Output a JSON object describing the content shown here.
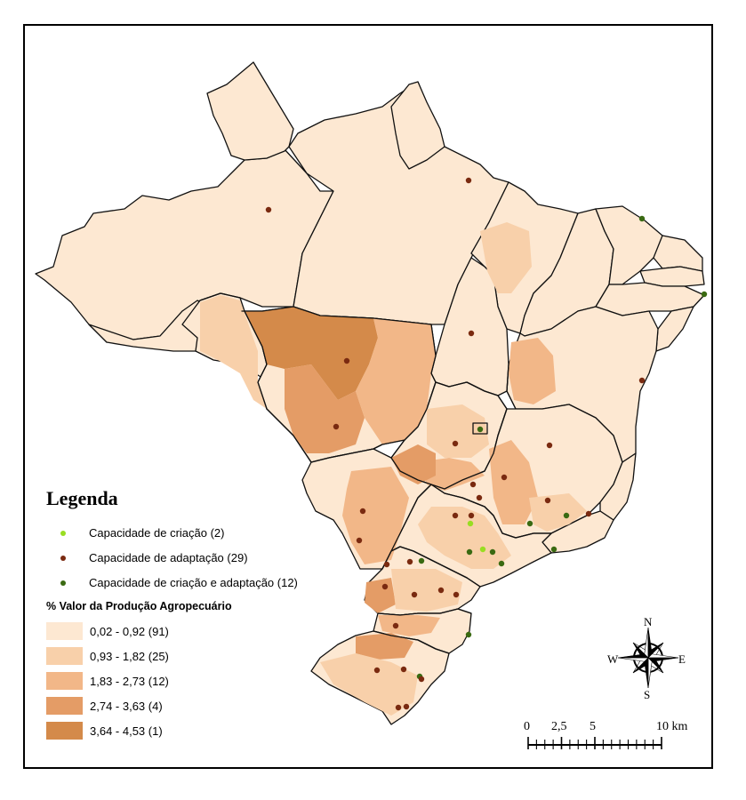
{
  "legend": {
    "title": "Legenda",
    "points": [
      {
        "label": "Capacidade de criação (2)",
        "color": "#99dd22"
      },
      {
        "label": "Capacidade de adaptação (29)",
        "color": "#7a2a10"
      },
      {
        "label": "Capacidade de criação e adaptação (12)",
        "color": "#3a6a12"
      }
    ],
    "classes_title": "% Valor da Produção Agropecuário",
    "classes": [
      {
        "label": "0,02 - 0,92 (91)",
        "color": "#fde8d2"
      },
      {
        "label": "0,93 - 1,82 (25)",
        "color": "#f8d0aa"
      },
      {
        "label": "1,83 - 2,73 (12)",
        "color": "#f2b788"
      },
      {
        "label": "2,74 - 3,63 (4)",
        "color": "#e49c66"
      },
      {
        "label": "3,64 - 4,53 (1)",
        "color": "#d48a4a"
      }
    ]
  },
  "scale_bar": {
    "labels": [
      "0",
      "2,5",
      "5",
      "10 km"
    ]
  },
  "compass": {
    "n": "N",
    "s": "S",
    "e": "E",
    "w": "W"
  }
}
